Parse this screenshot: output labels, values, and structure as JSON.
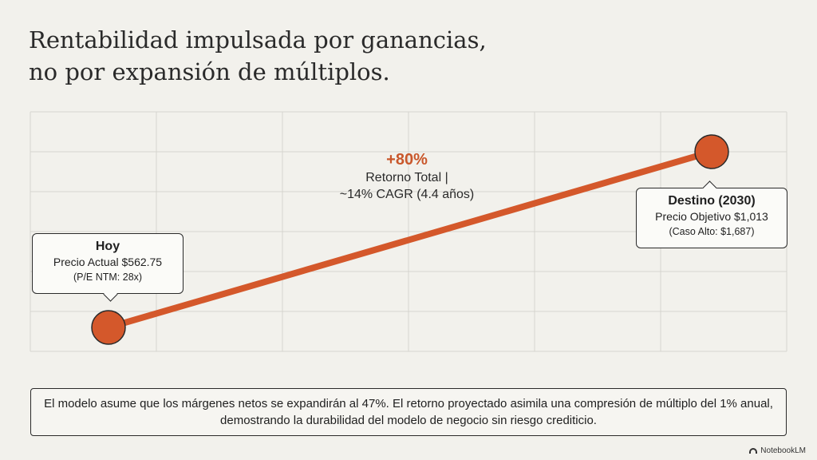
{
  "title_lines": [
    "Rentabilidad impulsada por ganancias,",
    "no por expansión de múltiplos."
  ],
  "chart_data": {
    "type": "line",
    "title": "Rentabilidad impulsada por ganancias, no por expansión de múltiplos.",
    "grid": true,
    "series": [
      {
        "values": [
          562.75,
          1013
        ],
        "color": "#d4582b"
      }
    ],
    "x_domain": [
      0,
      1
    ],
    "y_domain": [
      562.75,
      1013
    ],
    "points": [
      {
        "x": 0,
        "y": 562.75,
        "label": "Hoy"
      },
      {
        "x": 1,
        "y": 1013,
        "label": "Destino (2030)"
      }
    ],
    "callouts": {
      "hoy": {
        "heading": "Hoy",
        "line1": "Precio Actual $562.75",
        "line2": "(P/E NTM: 28x)"
      },
      "destino": {
        "heading": "Destino (2030)",
        "line1": "Precio Objetivo $1,013",
        "line2": "(Caso Alto: $1,687)"
      }
    },
    "annotation": {
      "value": "+80%",
      "line1": "Retorno Total |",
      "line2": "~14% CAGR (4.4 años)"
    }
  },
  "footer_text": "El modelo asume que los márgenes netos se expandirán al 47%. El retorno proyectado asimila una compresión de múltiplo del 1% anual, demostrando la durabilidad del modelo de negocio sin riesgo crediticio.",
  "watermark": "NotebookLM",
  "colors": {
    "accent": "#d4582b",
    "annotation": "#c9572b",
    "grid": "#d6d5cf"
  }
}
